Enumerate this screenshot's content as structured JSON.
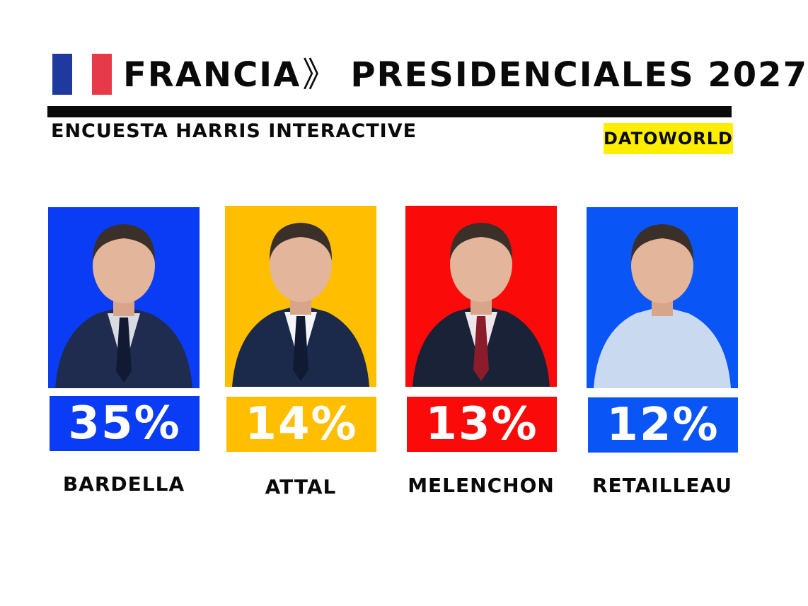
{
  "header": {
    "country": "FRANCIA",
    "arrow": "》",
    "title": "PRESIDENCIALES 2027",
    "subtitle": "ENCUESTA HARRIS INTERACTIVE",
    "source_badge": "DATOWORLD",
    "flag_colors": [
      "#1e3a9e",
      "#ffffff",
      "#e8394a"
    ],
    "badge_color": "#ffee00"
  },
  "candidates": [
    {
      "name": "BARDELLA",
      "percent": "35%",
      "color": "#0a3cf5",
      "suit_color": "#1f2c4f",
      "tie_color": "#121a33",
      "shirt_color": "#d9dbe3"
    },
    {
      "name": "ATTAL",
      "percent": "14%",
      "color": "#ffbe00",
      "suit_color": "#1b2a4a",
      "tie_color": "#111a33",
      "shirt_color": "#f5f5f5"
    },
    {
      "name": "MELENCHON",
      "percent": "13%",
      "color": "#fb0a0a",
      "suit_color": "#1a2238",
      "tie_color": "#8a1c2b",
      "shirt_color": "#f0e7ea"
    },
    {
      "name": "RETAILLEAU",
      "percent": "12%",
      "color": "#0a55f5",
      "suit_color": "#c9d9f0",
      "tie_color": "#c9d9f0",
      "shirt_color": "#c9d9f0"
    }
  ]
}
